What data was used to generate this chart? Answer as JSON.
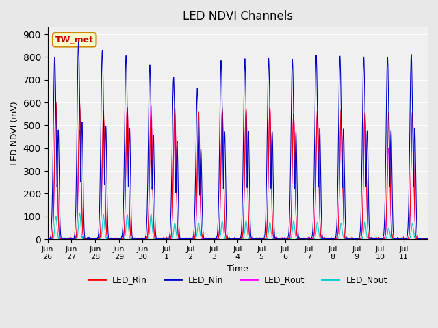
{
  "title": "LED NDVI Channels",
  "xlabel": "Time",
  "ylabel": "LED NDVI (mV)",
  "ylim": [
    0,
    930
  ],
  "yticks": [
    0,
    100,
    200,
    300,
    400,
    500,
    600,
    700,
    800,
    900
  ],
  "bg_color": "#e8e8e8",
  "plot_bg": "#f0f0f0",
  "label_color": "#cc0000",
  "annotation_text": "TW_met",
  "annotation_bg": "#ffffcc",
  "annotation_border": "#cc8800",
  "colors": {
    "LED_Rin": "#ff0000",
    "LED_Nin": "#0000cc",
    "LED_Rout": "#ff00ff",
    "LED_Nout": "#00cccc"
  },
  "legend_labels": [
    "LED_Rin",
    "LED_Nin",
    "LED_Rout",
    "LED_Nout"
  ],
  "num_cycles": 16,
  "x_tick_labels": [
    "Jun\n26",
    "Jun\n27",
    "Jun\n28",
    "Jun\n29",
    "Jun\n30",
    "Jul\n1",
    "Jul\n2",
    "Jul\n3",
    "Jul\n4",
    "Jul\n5",
    "Jul\n6",
    "Jul\n7",
    "Jul\n8",
    "Jul\n9",
    "Jul\n10",
    "Jul\n11"
  ],
  "peaks_Nin": [
    800,
    860,
    830,
    810,
    765,
    710,
    660,
    785,
    790,
    790,
    785,
    810,
    805,
    800,
    800,
    815
  ],
  "peaks_Rin": [
    600,
    600,
    560,
    575,
    540,
    580,
    560,
    570,
    575,
    580,
    550,
    565,
    570,
    560,
    560,
    560
  ],
  "peaks_Rout": [
    600,
    480,
    530,
    580,
    590,
    555,
    420,
    560,
    560,
    575,
    540,
    555,
    565,
    540,
    400,
    560
  ],
  "peaks_Nout": [
    100,
    115,
    105,
    110,
    110,
    70,
    70,
    80,
    80,
    75,
    80,
    75,
    70,
    75,
    50,
    70
  ]
}
